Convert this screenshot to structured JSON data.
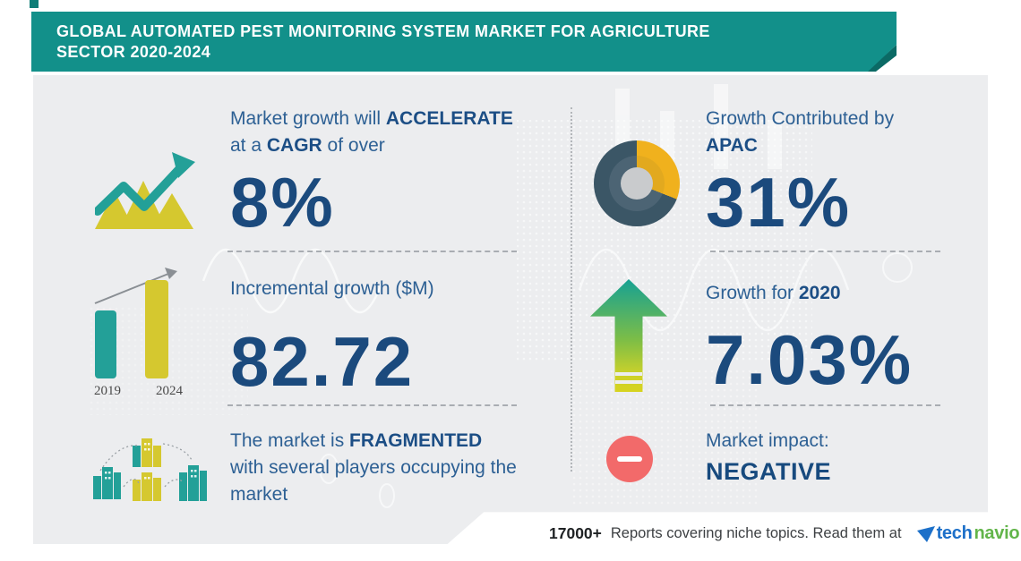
{
  "banner": {
    "line1": "GLOBAL AUTOMATED PEST MONITORING SYSTEM MARKET FOR AGRICULTURE",
    "line2": "SECTOR 2020-2024"
  },
  "left_column": {
    "cagr": {
      "l1a": "Market growth will ",
      "l1b": "ACCELERATE",
      "l2a": "at a ",
      "l2b": "CAGR",
      "l2c": " of over",
      "value": "8%"
    },
    "incremental": {
      "label": "Incremental growth ($M)",
      "value": "82.72",
      "bars": {
        "left_label": "2019",
        "right_label": "2024"
      }
    },
    "fragmentation": {
      "l1a": "The market is ",
      "l1b": "FRAGMENTED",
      "l2": "with several players occupying the",
      "l3": "market"
    }
  },
  "right_column": {
    "apac": {
      "l1": "Growth Contributed by",
      "l2": "APAC",
      "value": "31%"
    },
    "growth": {
      "l1a": "Growth for ",
      "l1b": "2020",
      "value": "7.03%"
    },
    "impact": {
      "l1": "Market impact:",
      "value": "NEGATIVE"
    }
  },
  "footer": {
    "count": "17000+",
    "text": "Reports covering niche topics. Read them at",
    "brand": {
      "tech": "tech",
      "navio": "navio",
      "tm": "™"
    }
  },
  "chart_data": [
    {
      "type": "pie",
      "title": "Growth Contributed by APAC",
      "labels": [
        "APAC",
        "Rest of world"
      ],
      "values": [
        31,
        69
      ],
      "colors": [
        "#F0B11D",
        "#3B5666"
      ],
      "inner_colors": [
        "#E2A91F",
        "#4C6474"
      ],
      "donut": true,
      "start_angle_deg": 0
    },
    {
      "type": "bar",
      "title": "Incremental growth ($M)",
      "categories": [
        "2019",
        "2024"
      ],
      "relative_heights": [
        0.69,
        1.0
      ],
      "incremental_value": 82.72,
      "colors": [
        "#23A098",
        "#D5C82F"
      ]
    }
  ],
  "colors": {
    "banner_teal": "#12908A",
    "fold_teal": "#0B6A65",
    "panel_gray": "#ECEDEF",
    "navy_regular": "#2D6094",
    "navy_bold": "#1C4E85",
    "number_navy": "#1B4A7D",
    "chart_yellow": "#D5C82F",
    "chart_teal": "#23A098",
    "donut_dark": "#3B5666",
    "donut_gold": "#F0B11D",
    "donut_hole": "#C9CBCD",
    "arrow_gradient_top": "#16A193",
    "arrow_gradient_bottom": "#D6D31F",
    "impact_red": "#F26A6A",
    "technavio_blue": "#1D70C9",
    "technavio_green": "#62B54A"
  }
}
